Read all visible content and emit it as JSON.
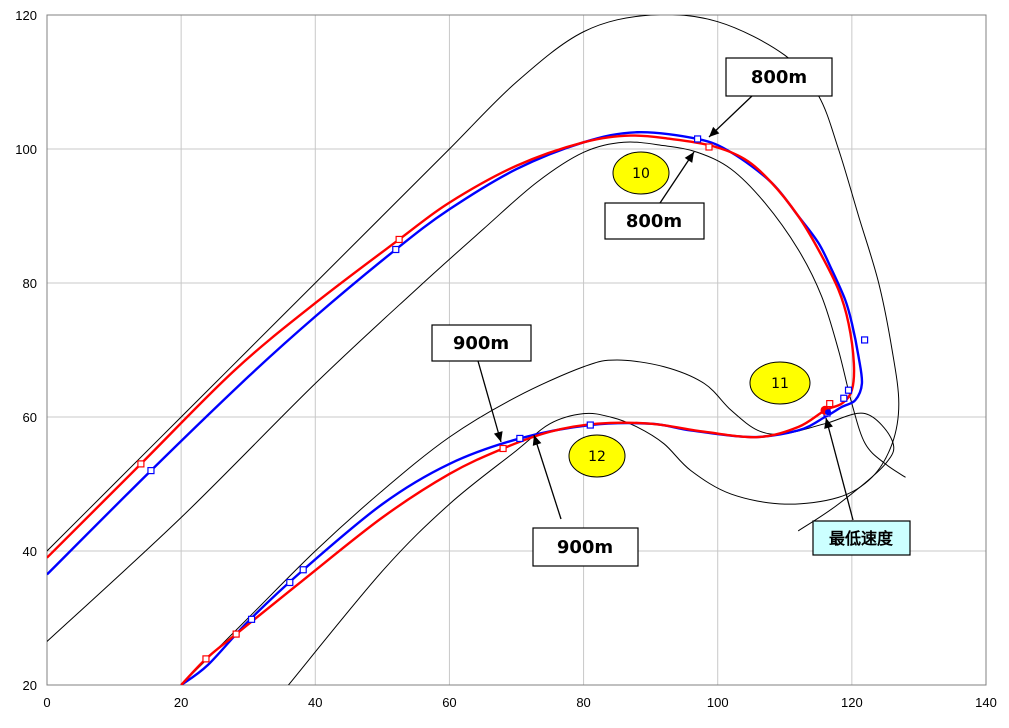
{
  "chart_data": {
    "type": "scatter",
    "title": "",
    "xlabel": "",
    "ylabel": "",
    "xlim": [
      0,
      140
    ],
    "ylim": [
      20,
      120
    ],
    "x_ticks": [
      0,
      20,
      40,
      60,
      80,
      100,
      120,
      140
    ],
    "y_ticks": [
      20,
      40,
      60,
      80,
      100,
      120
    ],
    "grid": true,
    "series": [
      {
        "color": "#000000",
        "points": [
          [
            0,
            26.5
          ],
          [
            20,
            45
          ],
          [
            40,
            65
          ],
          [
            55,
            79
          ],
          [
            65,
            88
          ],
          [
            73,
            95
          ],
          [
            80,
            99.5
          ],
          [
            86,
            101
          ],
          [
            92,
            100.5
          ],
          [
            97,
            99.5
          ],
          [
            102,
            97
          ],
          [
            107,
            92
          ],
          [
            112,
            85
          ],
          [
            115.5,
            78
          ],
          [
            118,
            70
          ],
          [
            120,
            62
          ],
          [
            122,
            56
          ],
          [
            125,
            53
          ],
          [
            128,
            51
          ]
        ]
      },
      {
        "color": "#000000",
        "points": [
          [
            0,
            40
          ],
          [
            10,
            50
          ],
          [
            20,
            60
          ],
          [
            30,
            70
          ],
          [
            40,
            80
          ],
          [
            50,
            90
          ],
          [
            60,
            100
          ],
          [
            70,
            110
          ],
          [
            80,
            117.5
          ],
          [
            90,
            120
          ],
          [
            100,
            119
          ],
          [
            110,
            114
          ],
          [
            115,
            108
          ],
          [
            118,
            100
          ],
          [
            121,
            90
          ],
          [
            124,
            80
          ],
          [
            126,
            70
          ],
          [
            127,
            62
          ],
          [
            126,
            56
          ],
          [
            123,
            51
          ],
          [
            118,
            48
          ],
          [
            110,
            47
          ],
          [
            102,
            48.5
          ],
          [
            96,
            52
          ],
          [
            92,
            56
          ],
          [
            88,
            58.5
          ],
          [
            84,
            60
          ],
          [
            80,
            60.5
          ],
          [
            75,
            59
          ],
          [
            70,
            55
          ],
          [
            60,
            47
          ],
          [
            50,
            37
          ],
          [
            36,
            20
          ]
        ]
      },
      {
        "color": "#000000",
        "points": [
          [
            20,
            20
          ],
          [
            30,
            30
          ],
          [
            40,
            40
          ],
          [
            50,
            49
          ],
          [
            60,
            57
          ],
          [
            70,
            63
          ],
          [
            80,
            67.5
          ],
          [
            85,
            68.5
          ],
          [
            92,
            67.5
          ],
          [
            98,
            65
          ],
          [
            102,
            61
          ],
          [
            106,
            58
          ],
          [
            110,
            57.5
          ],
          [
            116,
            59
          ],
          [
            122,
            60.5
          ],
          [
            126,
            56.5
          ],
          [
            125,
            53
          ],
          [
            118,
            47
          ],
          [
            112,
            43
          ]
        ]
      },
      {
        "color": "#0000ff",
        "points": [
          [
            0,
            36.5
          ],
          [
            15.5,
            52
          ],
          [
            30,
            66
          ],
          [
            40,
            75
          ],
          [
            52,
            85
          ],
          [
            60,
            91
          ],
          [
            70,
            97
          ],
          [
            80,
            101
          ],
          [
            88,
            102.5
          ],
          [
            97,
            101.5
          ],
          [
            102,
            99.5
          ],
          [
            108,
            95
          ],
          [
            112,
            90
          ],
          [
            115,
            86
          ],
          [
            117,
            82
          ],
          [
            119,
            77.5
          ],
          [
            120,
            74
          ],
          [
            121,
            69
          ],
          [
            121.5,
            65
          ],
          [
            120.5,
            62.5
          ],
          [
            118.5,
            61.5
          ],
          [
            116,
            60
          ],
          [
            112,
            58
          ],
          [
            105,
            57
          ],
          [
            96,
            58
          ],
          [
            90,
            59
          ],
          [
            81,
            58.8
          ],
          [
            70.5,
            56.8
          ],
          [
            60,
            53
          ],
          [
            50,
            47
          ],
          [
            38,
            37
          ],
          [
            30,
            29.5
          ],
          [
            24,
            23
          ],
          [
            20,
            20
          ]
        ],
        "markers": [
          [
            15.5,
            52
          ],
          [
            52,
            85
          ],
          [
            97,
            101.5
          ],
          [
            121.9,
            71.5
          ],
          [
            119.5,
            64
          ],
          [
            118.8,
            62.8
          ],
          [
            116.3,
            60.6
          ],
          [
            81,
            58.8
          ],
          [
            70.5,
            56.8
          ],
          [
            38.2,
            37.2
          ],
          [
            36.2,
            35.3
          ],
          [
            30.5,
            29.8
          ]
        ]
      },
      {
        "color": "#ff0000",
        "points": [
          [
            0,
            39
          ],
          [
            14,
            53
          ],
          [
            28,
            67
          ],
          [
            40,
            77
          ],
          [
            52.5,
            86.5
          ],
          [
            60,
            92
          ],
          [
            70,
            97.5
          ],
          [
            80,
            101
          ],
          [
            87,
            102
          ],
          [
            93,
            101.5
          ],
          [
            99,
            100.5
          ],
          [
            104,
            98.5
          ],
          [
            108,
            95
          ],
          [
            112,
            90
          ],
          [
            115,
            85
          ],
          [
            118,
            79
          ],
          [
            119.5,
            74
          ],
          [
            120.3,
            68
          ],
          [
            120,
            64
          ],
          [
            118.5,
            62
          ],
          [
            116,
            61
          ],
          [
            112,
            58.5
          ],
          [
            106,
            57
          ],
          [
            98,
            57.8
          ],
          [
            90,
            59
          ],
          [
            82,
            59
          ],
          [
            75,
            57.8
          ],
          [
            68,
            55.3
          ],
          [
            60,
            51.5
          ],
          [
            50,
            45
          ],
          [
            38,
            35.5
          ],
          [
            28.2,
            27.6
          ],
          [
            23.7,
            23.9
          ],
          [
            20,
            20
          ]
        ],
        "markers": [
          [
            14,
            53
          ],
          [
            52.5,
            86.5
          ],
          [
            98.7,
            100.3
          ],
          [
            116.7,
            62
          ],
          [
            68,
            55.3
          ],
          [
            28.2,
            27.6
          ],
          [
            23.7,
            23.9
          ]
        ]
      }
    ],
    "annotations": {
      "blue_800": {
        "text": "800m",
        "color": "#0000ff"
      },
      "red_800": {
        "text": "800m",
        "color": "#ff0000"
      },
      "red_900": {
        "text": "900m",
        "color": "#ff0000"
      },
      "blue_900": {
        "text": "900m",
        "color": "#0000ff"
      },
      "min_speed": {
        "text": "最低速度",
        "color": "#000000",
        "fill": "#ccffff"
      },
      "corner_10": {
        "text": "10",
        "fill": "#ffff00"
      },
      "corner_11": {
        "text": "11",
        "fill": "#ffff00"
      },
      "corner_12": {
        "text": "12",
        "fill": "#ffff00"
      }
    },
    "min_speed_point": {
      "x": 116,
      "y": 61
    }
  }
}
